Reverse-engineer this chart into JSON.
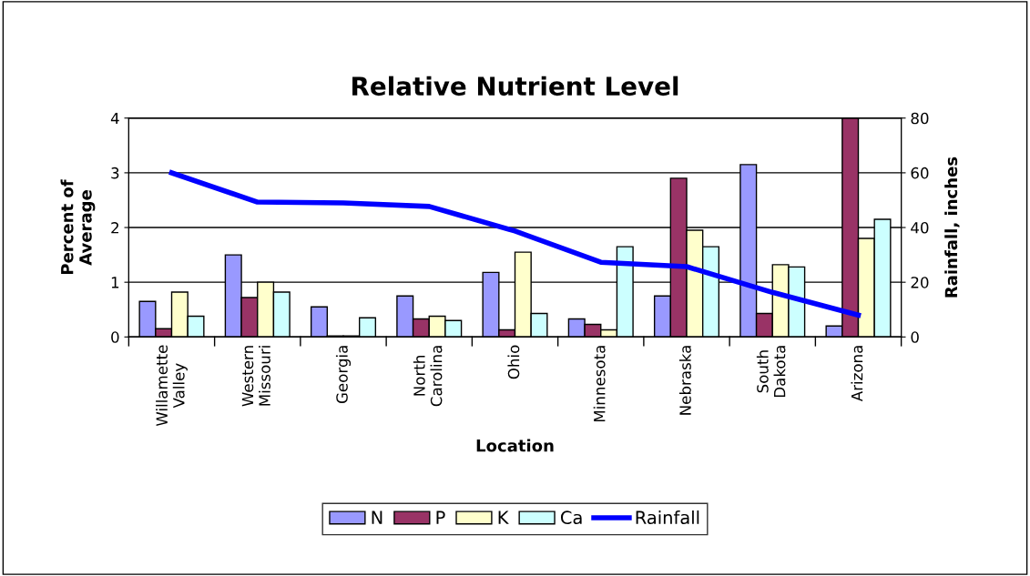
{
  "chart_data": {
    "type": "bar",
    "title": "Relative Nutrient Level",
    "xlabel": "Location",
    "ylabel": "Percent of\nAverage",
    "y2label": "Rainfall, inches",
    "categories": [
      "Willamette\nValley",
      "Western\nMissouri",
      "Georgia",
      "North\nCarolina",
      "Ohio",
      "Minnesota",
      "Nebraska",
      "South\nDakota",
      "Arizona"
    ],
    "series": [
      {
        "name": "N",
        "color": "#9999ff",
        "values": [
          0.65,
          1.5,
          0.55,
          0.75,
          1.18,
          0.33,
          0.75,
          3.15,
          0.2
        ]
      },
      {
        "name": "P",
        "color": "#993366",
        "values": [
          0.15,
          0.72,
          0.02,
          0.33,
          0.13,
          0.23,
          2.9,
          0.43,
          4
        ]
      },
      {
        "name": "K",
        "color": "#ffffcc",
        "values": [
          0.82,
          1.0,
          0.02,
          0.38,
          1.55,
          0.13,
          1.95,
          1.32,
          1.8
        ]
      },
      {
        "name": "Ca",
        "color": "#ccffff",
        "values": [
          0.38,
          0.82,
          0.35,
          0.3,
          0.43,
          1.65,
          1.65,
          1.28,
          2.15
        ]
      },
      {
        "name": "Rainfall",
        "type": "line",
        "axis": "y2",
        "color": "#0000ff",
        "values": [
          60,
          49.3,
          49,
          47.7,
          38.7,
          27.3,
          25.7,
          16.3,
          8
        ]
      }
    ],
    "ylim": [
      0,
      4
    ],
    "yticks": [
      0,
      1,
      2,
      3,
      4
    ],
    "y2lim": [
      0,
      80
    ],
    "y2ticks": [
      0,
      20,
      40,
      60,
      80
    ],
    "grid": "y",
    "legend": "bottom",
    "marker": "none"
  }
}
